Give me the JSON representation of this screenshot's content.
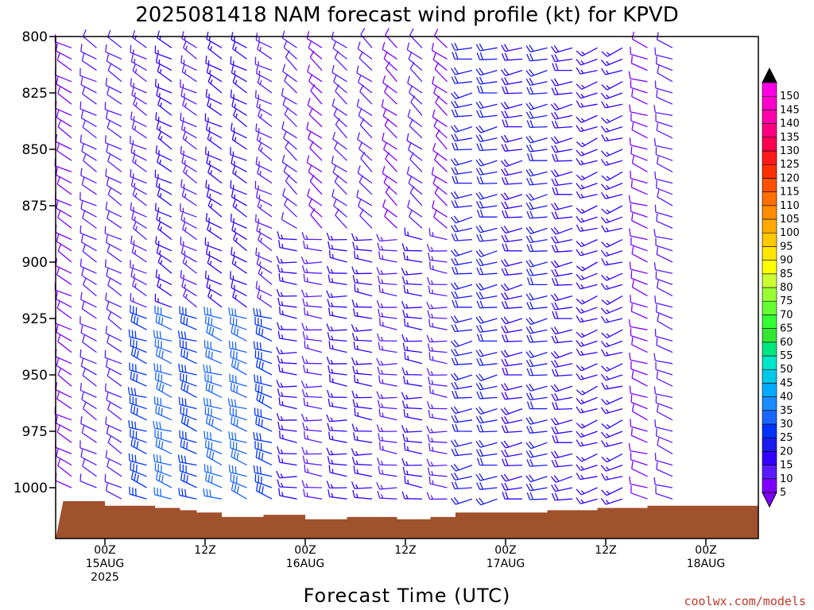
{
  "chart_data": {
    "type": "wind_barbs",
    "title": "2025081418 NAM forecast wind profile (kt) for KPVD",
    "xlabel": "Forecast Time (UTC)",
    "ylabel": "",
    "y_axis": {
      "reversed": true,
      "range": [
        1015,
        800
      ],
      "ticks": [
        800,
        825,
        850,
        875,
        900,
        925,
        950,
        975,
        1000
      ]
    },
    "x_axis": {
      "range_hours": [
        -5,
        65
      ],
      "ticks": [
        {
          "hour": 0,
          "label1": "00Z",
          "label2": "15AUG",
          "label3": "2025"
        },
        {
          "hour": 12,
          "label1": "12Z",
          "label2": "",
          "label3": ""
        },
        {
          "hour": 24,
          "label1": "00Z",
          "label2": "16AUG",
          "label3": ""
        },
        {
          "hour": 36,
          "label1": "12Z",
          "label2": "",
          "label3": ""
        },
        {
          "hour": 48,
          "label1": "00Z",
          "label2": "17AUG",
          "label3": ""
        },
        {
          "hour": 60,
          "label1": "12Z",
          "label2": "",
          "label3": ""
        },
        {
          "hour": 72,
          "label1": "00Z",
          "label2": "18AUG",
          "label3": ""
        }
      ]
    },
    "colorbar": {
      "levels": [
        5,
        10,
        15,
        20,
        25,
        30,
        35,
        40,
        45,
        50,
        55,
        60,
        65,
        70,
        75,
        80,
        85,
        90,
        95,
        100,
        105,
        110,
        115,
        120,
        125,
        130,
        135,
        140,
        145,
        150
      ],
      "colors": [
        "#7f00ff",
        "#5a1aff",
        "#3300ff",
        "#1a1aee",
        "#0033ff",
        "#1a66ff",
        "#1a8cff",
        "#00aaff",
        "#00c8e6",
        "#00e6c8",
        "#00e680",
        "#33e633",
        "#33ff33",
        "#66ff33",
        "#99ff33",
        "#ccff33",
        "#ffff00",
        "#ffe600",
        "#ffc800",
        "#ffaa00",
        "#ff8c00",
        "#ff7000",
        "#ff5000",
        "#ff3000",
        "#ff1a1a",
        "#ff0050",
        "#ff0080",
        "#ff00aa",
        "#ff00cc",
        "#ff00e6"
      ]
    },
    "terrain": {
      "color": "#a0522d",
      "surface_pressure": [
        {
          "hour": -5,
          "p": 1006
        },
        {
          "hour": -2,
          "p": 1006
        },
        {
          "hour": 0,
          "p": 1008
        },
        {
          "hour": 4,
          "p": 1008
        },
        {
          "hour": 6,
          "p": 1009
        },
        {
          "hour": 9,
          "p": 1010
        },
        {
          "hour": 11,
          "p": 1011
        },
        {
          "hour": 14,
          "p": 1013
        },
        {
          "hour": 19,
          "p": 1012
        },
        {
          "hour": 24,
          "p": 1014
        },
        {
          "hour": 29,
          "p": 1013
        },
        {
          "hour": 35,
          "p": 1014
        },
        {
          "hour": 39,
          "p": 1013
        },
        {
          "hour": 42,
          "p": 1011
        },
        {
          "hour": 48,
          "p": 1011
        },
        {
          "hour": 53,
          "p": 1010
        },
        {
          "hour": 59,
          "p": 1009
        },
        {
          "hour": 65,
          "p": 1008
        }
      ]
    },
    "wind_field": {
      "description_levels": [
        1005,
        1000,
        995,
        990,
        985,
        980,
        975,
        970,
        965,
        960,
        955,
        950,
        945,
        940,
        935,
        930,
        925,
        920,
        915,
        910,
        905,
        900,
        895,
        890,
        885,
        880,
        875,
        870,
        865,
        860,
        855,
        850,
        845,
        840,
        835,
        830,
        825,
        820,
        815,
        810,
        805,
        800
      ],
      "time_step_hours": 3,
      "regimes": [
        {
          "hours": [
            -5,
            3
          ],
          "levels": [
            800,
            1010
          ],
          "dir": 300,
          "spd": 10
        },
        {
          "hours": [
            3,
            22
          ],
          "levels": [
            920,
            1010
          ],
          "dir": 290,
          "spd": 30
        },
        {
          "hours": [
            3,
            22
          ],
          "levels": [
            800,
            920
          ],
          "dir": 300,
          "spd": 15
        },
        {
          "hours": [
            22,
            44
          ],
          "levels": [
            800,
            890
          ],
          "dir": 310,
          "spd": 10
        },
        {
          "hours": [
            22,
            44
          ],
          "levels": [
            890,
            1010
          ],
          "dir": 275,
          "spd": 15
        },
        {
          "hours": [
            44,
            58
          ],
          "levels": [
            800,
            1010
          ],
          "dir": 260,
          "spd": 20
        },
        {
          "hours": [
            58,
            65
          ],
          "levels": [
            800,
            1010
          ],
          "dir": 250,
          "spd": 15
        }
      ]
    }
  },
  "credit": "coolwx.com/models"
}
